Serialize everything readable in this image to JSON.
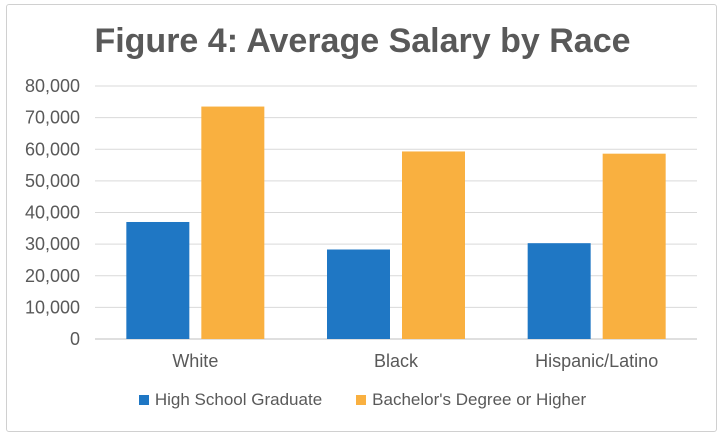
{
  "chart_data": {
    "type": "bar",
    "title": "Figure 4: Average Salary by Race",
    "xlabel": "",
    "ylabel": "",
    "categories": [
      "White",
      "Black",
      "Hispanic/Latino"
    ],
    "series": [
      {
        "name": "High School Graduate",
        "values": [
          37000,
          28300,
          30300
        ],
        "color": "#1f77c4"
      },
      {
        "name": "Bachelor's Degree or Higher",
        "values": [
          73500,
          59300,
          58600
        ],
        "color": "#f9b040"
      }
    ],
    "ylim": [
      0,
      80000
    ],
    "yticks": [
      "0",
      "10,000",
      "20,000",
      "30,000",
      "40,000",
      "50,000",
      "60,000",
      "70,000",
      "80,000"
    ],
    "grid": true,
    "legend_position": "bottom"
  }
}
